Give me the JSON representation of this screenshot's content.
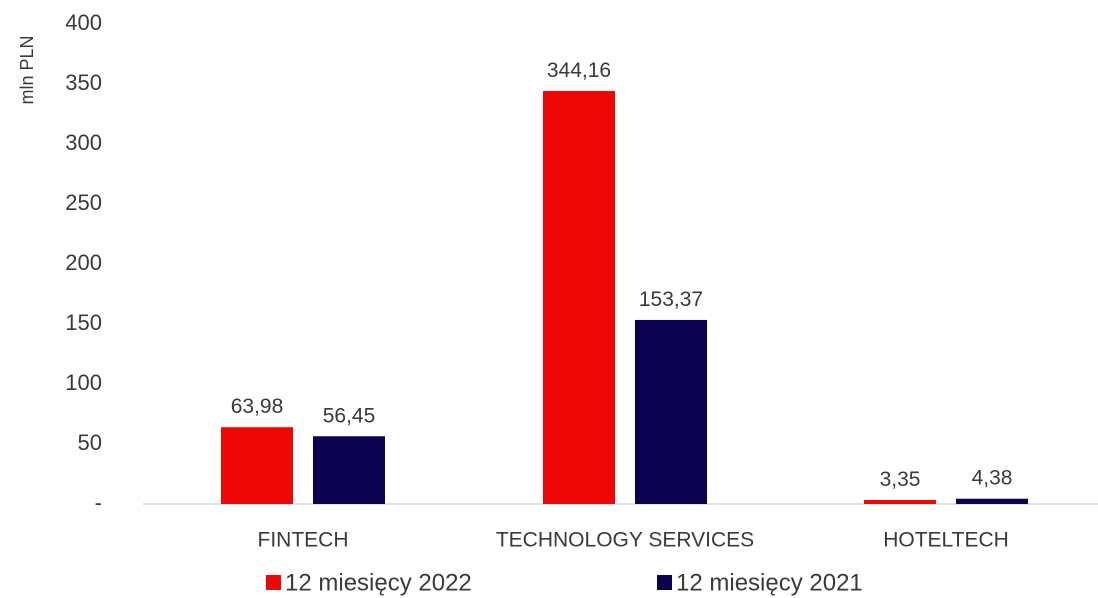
{
  "chart_data": {
    "type": "bar",
    "ylabel": "mln PLN",
    "ylim": [
      0,
      400
    ],
    "yticks": [
      0,
      50,
      100,
      150,
      200,
      250,
      300,
      350,
      400
    ],
    "ytick_labels": [
      "-",
      "50",
      "100",
      "150",
      "200",
      "250",
      "300",
      "350",
      "400"
    ],
    "categories": [
      "FINTECH",
      "TECHNOLOGY SERVICES",
      "HOTELTECH"
    ],
    "series": [
      {
        "name": "12 miesięcy 2022",
        "color": "#ee0707",
        "values": [
          63.98,
          344.16,
          3.35
        ],
        "labels": [
          "63,98",
          "344,16",
          "3,35"
        ]
      },
      {
        "name": "12 miesięcy 2021",
        "color": "#0b0250",
        "values": [
          56.45,
          153.37,
          4.38
        ],
        "labels": [
          "56,45",
          "153,37",
          "4,38"
        ]
      }
    ],
    "grid": false,
    "legend_position": "bottom"
  }
}
